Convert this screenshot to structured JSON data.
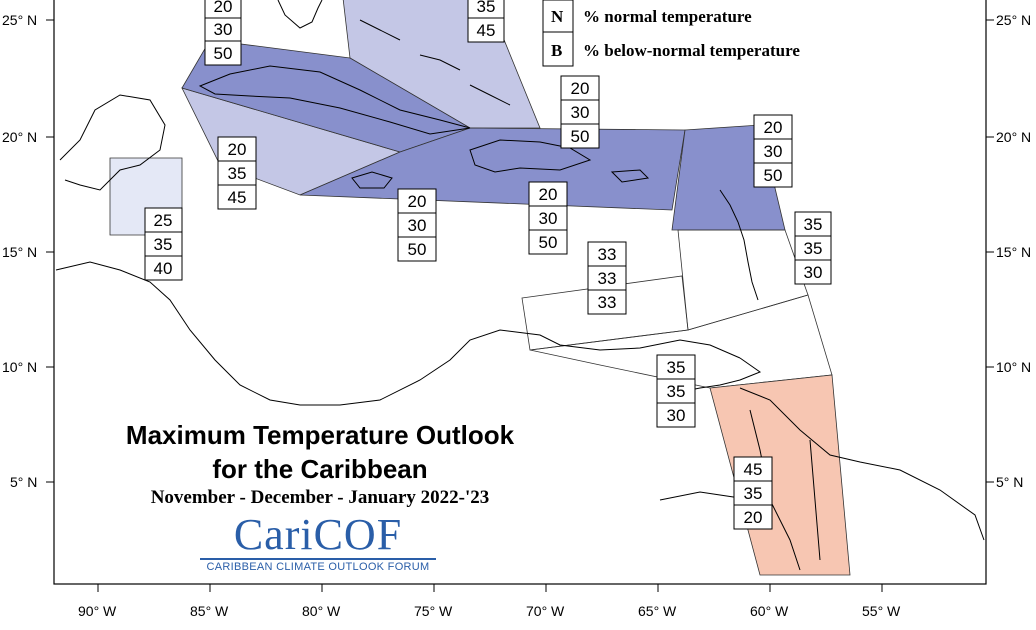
{
  "title": {
    "line1": "Maximum Temperature Outlook",
    "line2": "for the Caribbean",
    "period": "November - December - January 2022-'23"
  },
  "logo": {
    "name": "CariCOF",
    "tagline": "CARIBBEAN CLIMATE OUTLOOK FORUM"
  },
  "legend": [
    {
      "key": "N",
      "label": "% normal temperature"
    },
    {
      "key": "B",
      "label": "% below-normal temperature"
    }
  ],
  "axes": {
    "lat_labels": [
      "25° N",
      "20° N",
      "15° N",
      "10° N",
      "5° N"
    ],
    "lon_labels": [
      "90° W",
      "85° W",
      "80° W",
      "75° W",
      "70° W",
      "65° W",
      "60° W",
      "55° W"
    ]
  },
  "colors": {
    "light_blue": "#c4c7e6",
    "mid_blue": "#8890cc",
    "pale_blue": "#e4e8f6",
    "salmon": "#f7c6b2"
  },
  "regions": [
    {
      "id": "northern-bahamas",
      "values": [
        "20",
        "30",
        "50"
      ]
    },
    {
      "id": "southern-bahamas",
      "values": [
        "35",
        "45"
      ]
    },
    {
      "id": "western-cuba-cayman",
      "values": [
        "20",
        "35",
        "45"
      ]
    },
    {
      "id": "belize",
      "values": [
        "25",
        "35",
        "40"
      ]
    },
    {
      "id": "jamaica-south",
      "values": [
        "20",
        "30",
        "50"
      ]
    },
    {
      "id": "hispaniola",
      "values": [
        "20",
        "30",
        "50"
      ]
    },
    {
      "id": "puerto-rico",
      "values": [
        "20",
        "30",
        "50"
      ]
    },
    {
      "id": "leeward-islands",
      "values": [
        "20",
        "30",
        "50"
      ]
    },
    {
      "id": "windward-islands",
      "values": [
        "35",
        "35",
        "30"
      ]
    },
    {
      "id": "central-caribbean",
      "values": [
        "33",
        "33",
        "33"
      ]
    },
    {
      "id": "trinidad-venezuela",
      "values": [
        "35",
        "35",
        "30"
      ]
    },
    {
      "id": "guianas",
      "values": [
        "45",
        "35",
        "20"
      ]
    }
  ]
}
